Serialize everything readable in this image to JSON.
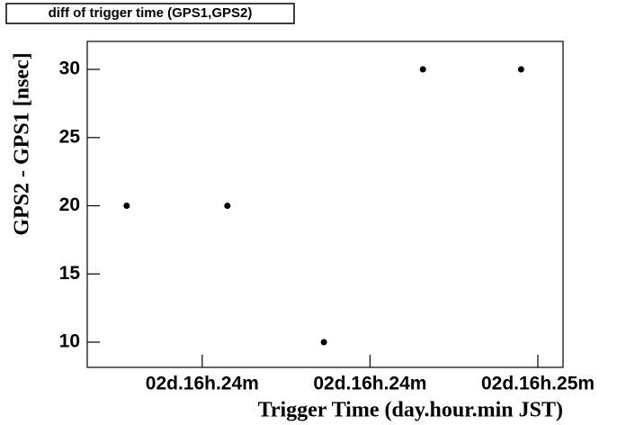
{
  "chart_data": {
    "type": "scatter",
    "title": "diff of trigger time (GPS1,GPS2)",
    "x_label": "Trigger Time (day.hour.min JST)",
    "y_label": "GPS2 - GPS1 [nsec]",
    "x": [
      1451,
      1463,
      1474.5,
      1486.3,
      1498
    ],
    "values": [
      20,
      20,
      10,
      30,
      30
    ],
    "color": "#000000",
    "xlim": [
      1446.3,
      1503
    ],
    "ylim": [
      8.15,
      32.05
    ],
    "xticks": [
      {
        "value": 1460,
        "label": "02d.16h.24m"
      },
      {
        "value": 1480,
        "label": "02d.16h.24m"
      },
      {
        "value": 1500,
        "label": "02d.16h.25m"
      }
    ],
    "yticks": [
      10,
      15,
      20,
      25,
      30
    ]
  }
}
